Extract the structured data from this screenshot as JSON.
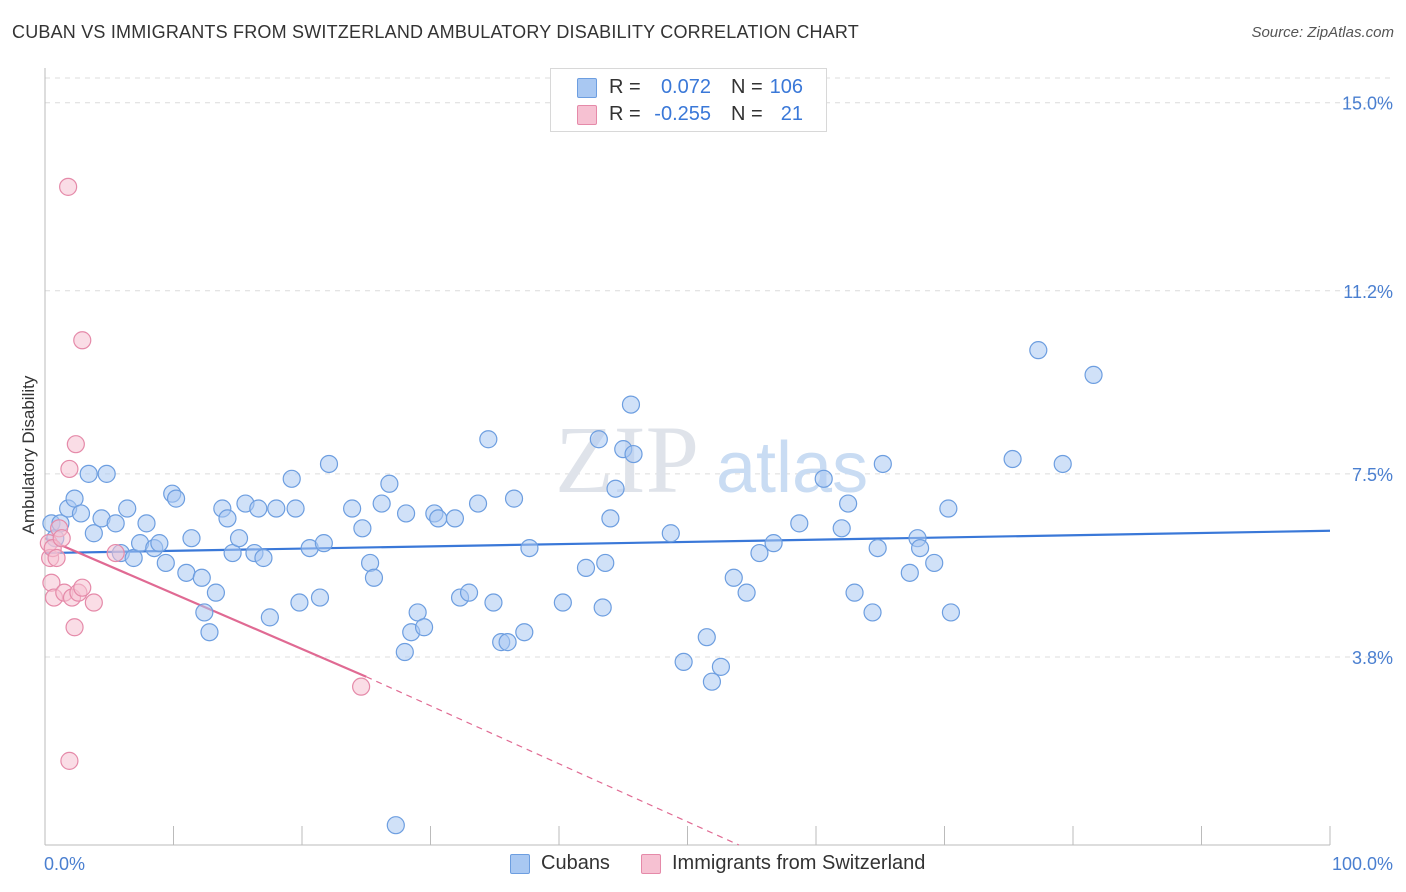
{
  "header": {
    "title": "CUBAN VS IMMIGRANTS FROM SWITZERLAND AMBULATORY DISABILITY CORRELATION CHART",
    "source": "Source: ZipAtlas.com"
  },
  "watermark": {
    "zip": "ZIP",
    "atlas": "atlas"
  },
  "legend_top": [
    {
      "r_label": "R =",
      "r_value": "0.072",
      "n_label": "N =",
      "n_value": "106",
      "color": "#a9c8f2",
      "border": "#6d9ee0"
    },
    {
      "r_label": "R =",
      "r_value": "-0.255",
      "n_label": "N =",
      "n_value": "21",
      "color": "#f6c1d2",
      "border": "#e58aa9"
    }
  ],
  "legend_bottom": [
    {
      "label": "Cubans",
      "color": "#a9c8f2",
      "border": "#6d9ee0"
    },
    {
      "label": "Immigrants from Switzerland",
      "color": "#f6c1d2",
      "border": "#e58aa9"
    }
  ],
  "chart_data": {
    "type": "scatter",
    "title": "CUBAN VS IMMIGRANTS FROM SWITZERLAND AMBULATORY DISABILITY CORRELATION CHART",
    "xlabel": "",
    "ylabel": "Ambulatory Disability",
    "xlim": [
      0,
      100
    ],
    "ylim": [
      0,
      15.5
    ],
    "x_tick_labels": [
      "0.0%",
      "100.0%"
    ],
    "y_ticks": [
      3.8,
      7.5,
      11.2,
      15.0
    ],
    "y_tick_labels": [
      "3.8%",
      "7.5%",
      "11.2%",
      "15.0%"
    ],
    "grid": true,
    "legend_position": "top-center",
    "series": [
      {
        "name": "Cubans",
        "color": "#a9c8f2",
        "edge": "#6d9ee0",
        "trend": {
          "x": [
            0,
            100
          ],
          "y": [
            5.9,
            6.35
          ],
          "color": "#3a78d8"
        },
        "points": [
          [
            0.5,
            6.5
          ],
          [
            0.8,
            6.2
          ],
          [
            1.2,
            6.5
          ],
          [
            1.8,
            6.8
          ],
          [
            2.3,
            7.0
          ],
          [
            2.8,
            6.7
          ],
          [
            3.4,
            7.5
          ],
          [
            3.8,
            6.3
          ],
          [
            4.4,
            6.6
          ],
          [
            4.8,
            7.5
          ],
          [
            5.5,
            6.5
          ],
          [
            5.9,
            5.9
          ],
          [
            6.4,
            6.8
          ],
          [
            6.9,
            5.8
          ],
          [
            7.4,
            6.1
          ],
          [
            7.9,
            6.5
          ],
          [
            8.5,
            6.0
          ],
          [
            8.9,
            6.1
          ],
          [
            9.4,
            5.7
          ],
          [
            9.9,
            7.1
          ],
          [
            10.2,
            7.0
          ],
          [
            11.0,
            5.5
          ],
          [
            11.4,
            6.2
          ],
          [
            12.2,
            5.4
          ],
          [
            12.4,
            4.7
          ],
          [
            12.8,
            4.3
          ],
          [
            13.3,
            5.1
          ],
          [
            13.8,
            6.8
          ],
          [
            14.2,
            6.6
          ],
          [
            14.6,
            5.9
          ],
          [
            15.1,
            6.2
          ],
          [
            15.6,
            6.9
          ],
          [
            16.3,
            5.9
          ],
          [
            16.6,
            6.8
          ],
          [
            17.0,
            5.8
          ],
          [
            17.5,
            4.6
          ],
          [
            18.0,
            6.8
          ],
          [
            19.2,
            7.4
          ],
          [
            19.5,
            6.8
          ],
          [
            19.8,
            4.9
          ],
          [
            20.6,
            6.0
          ],
          [
            21.4,
            5.0
          ],
          [
            21.7,
            6.1
          ],
          [
            22.1,
            7.7
          ],
          [
            23.9,
            6.8
          ],
          [
            24.7,
            6.4
          ],
          [
            25.3,
            5.7
          ],
          [
            25.6,
            5.4
          ],
          [
            26.2,
            6.9
          ],
          [
            26.8,
            7.3
          ],
          [
            27.3,
            0.4
          ],
          [
            28.0,
            3.9
          ],
          [
            28.1,
            6.7
          ],
          [
            28.5,
            4.3
          ],
          [
            29.0,
            4.7
          ],
          [
            29.5,
            4.4
          ],
          [
            30.3,
            6.7
          ],
          [
            30.6,
            6.6
          ],
          [
            31.9,
            6.6
          ],
          [
            32.3,
            5.0
          ],
          [
            33.0,
            5.1
          ],
          [
            33.7,
            6.9
          ],
          [
            34.5,
            8.2
          ],
          [
            34.9,
            4.9
          ],
          [
            35.5,
            4.1
          ],
          [
            36.0,
            4.1
          ],
          [
            36.5,
            7.0
          ],
          [
            37.3,
            4.3
          ],
          [
            37.7,
            6.0
          ],
          [
            40.3,
            4.9
          ],
          [
            42.1,
            5.6
          ],
          [
            43.1,
            8.2
          ],
          [
            43.4,
            4.8
          ],
          [
            43.6,
            5.7
          ],
          [
            44.0,
            6.6
          ],
          [
            44.4,
            7.2
          ],
          [
            45.0,
            8.0
          ],
          [
            45.6,
            8.9
          ],
          [
            45.8,
            7.9
          ],
          [
            48.7,
            6.3
          ],
          [
            49.7,
            3.7
          ],
          [
            51.5,
            4.2
          ],
          [
            51.9,
            3.3
          ],
          [
            52.6,
            3.6
          ],
          [
            53.6,
            5.4
          ],
          [
            54.6,
            5.1
          ],
          [
            55.6,
            5.9
          ],
          [
            56.7,
            6.1
          ],
          [
            58.7,
            6.5
          ],
          [
            60.6,
            7.4
          ],
          [
            62.0,
            6.4
          ],
          [
            62.5,
            6.9
          ],
          [
            63.0,
            5.1
          ],
          [
            64.4,
            4.7
          ],
          [
            64.8,
            6.0
          ],
          [
            65.2,
            7.7
          ],
          [
            67.3,
            5.5
          ],
          [
            67.9,
            6.2
          ],
          [
            68.1,
            6.0
          ],
          [
            69.2,
            5.7
          ],
          [
            70.3,
            6.8
          ],
          [
            70.5,
            4.7
          ],
          [
            75.3,
            7.8
          ],
          [
            77.3,
            10.0
          ],
          [
            79.2,
            7.7
          ],
          [
            81.6,
            9.5
          ]
        ]
      },
      {
        "name": "Immigrants from Switzerland",
        "color": "#f6c1d2",
        "edge": "#e58aa9",
        "trend": {
          "x": [
            0,
            25
          ],
          "y": [
            6.2,
            3.4
          ],
          "dashed_to": {
            "x": 54,
            "y": 0
          },
          "color": "#e06a93"
        },
        "points": [
          [
            0.3,
            6.1
          ],
          [
            0.4,
            5.8
          ],
          [
            0.5,
            5.3
          ],
          [
            0.6,
            6.0
          ],
          [
            0.7,
            5.0
          ],
          [
            0.9,
            5.8
          ],
          [
            1.1,
            6.4
          ],
          [
            1.3,
            6.2
          ],
          [
            1.5,
            5.1
          ],
          [
            1.8,
            13.3
          ],
          [
            1.9,
            7.6
          ],
          [
            2.1,
            5.0
          ],
          [
            2.3,
            4.4
          ],
          [
            2.4,
            8.1
          ],
          [
            2.6,
            5.1
          ],
          [
            2.9,
            10.2
          ],
          [
            2.9,
            5.2
          ],
          [
            3.8,
            4.9
          ],
          [
            5.5,
            5.9
          ],
          [
            24.6,
            3.2
          ],
          [
            1.9,
            1.7
          ]
        ]
      }
    ]
  }
}
